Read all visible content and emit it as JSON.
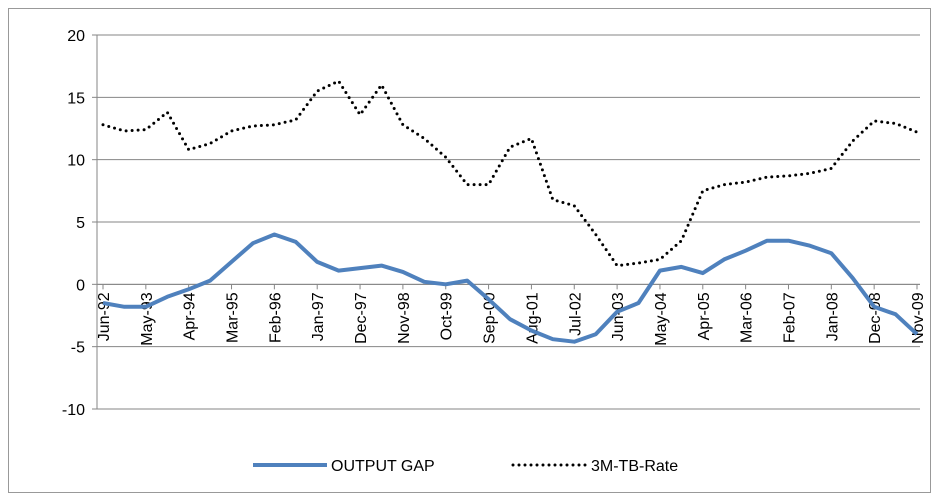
{
  "chart_data": {
    "type": "line",
    "categories": [
      "Jun-92",
      null,
      "May-93",
      null,
      "Apr-94",
      null,
      "Mar-95",
      null,
      "Feb-96",
      null,
      "Jan-97",
      null,
      "Dec-97",
      null,
      "Nov-98",
      null,
      "Oct-99",
      null,
      "Sep-00",
      null,
      "Aug-01",
      null,
      "Jul-02",
      null,
      "Jun-03",
      null,
      "May-04",
      null,
      "Apr-05",
      null,
      "Mar-06",
      null,
      "Feb-07",
      null,
      "Jan-08",
      null,
      "Dec-08",
      null,
      "Nov-09"
    ],
    "series": [
      {
        "name": "OUTPUT GAP",
        "color": "#4f81bd",
        "dash": "solid",
        "values": [
          -1.5,
          -1.8,
          -1.8,
          -1.0,
          -0.4,
          0.3,
          1.8,
          3.3,
          4.0,
          3.4,
          1.8,
          1.1,
          1.3,
          1.5,
          1.0,
          0.2,
          0.0,
          0.3,
          -1.2,
          -2.8,
          -3.7,
          -4.4,
          -4.6,
          -4.0,
          -2.2,
          -1.5,
          1.1,
          1.4,
          0.9,
          2.0,
          2.7,
          3.5,
          3.5,
          3.1,
          2.5,
          0.5,
          -1.8,
          -2.4,
          -4.0
        ]
      },
      {
        "name": "3M-TB-Rate",
        "color": "#000000",
        "dash": "dotted",
        "values": [
          12.8,
          12.3,
          12.4,
          13.8,
          10.8,
          11.3,
          12.3,
          12.7,
          12.8,
          13.2,
          15.5,
          16.3,
          13.6,
          16.0,
          12.8,
          11.7,
          10.2,
          8.0,
          8.0,
          11.0,
          11.7,
          6.8,
          6.3,
          4.0,
          1.5,
          1.7,
          2.0,
          3.5,
          7.5,
          8.0,
          8.2,
          8.6,
          8.7,
          8.9,
          9.3,
          11.5,
          13.1,
          12.9,
          12.2
        ]
      }
    ],
    "ylim": [
      -10,
      20
    ],
    "yticks": [
      -10,
      -5,
      0,
      5,
      10,
      15,
      20
    ],
    "grid": true,
    "legend": "bottom"
  }
}
